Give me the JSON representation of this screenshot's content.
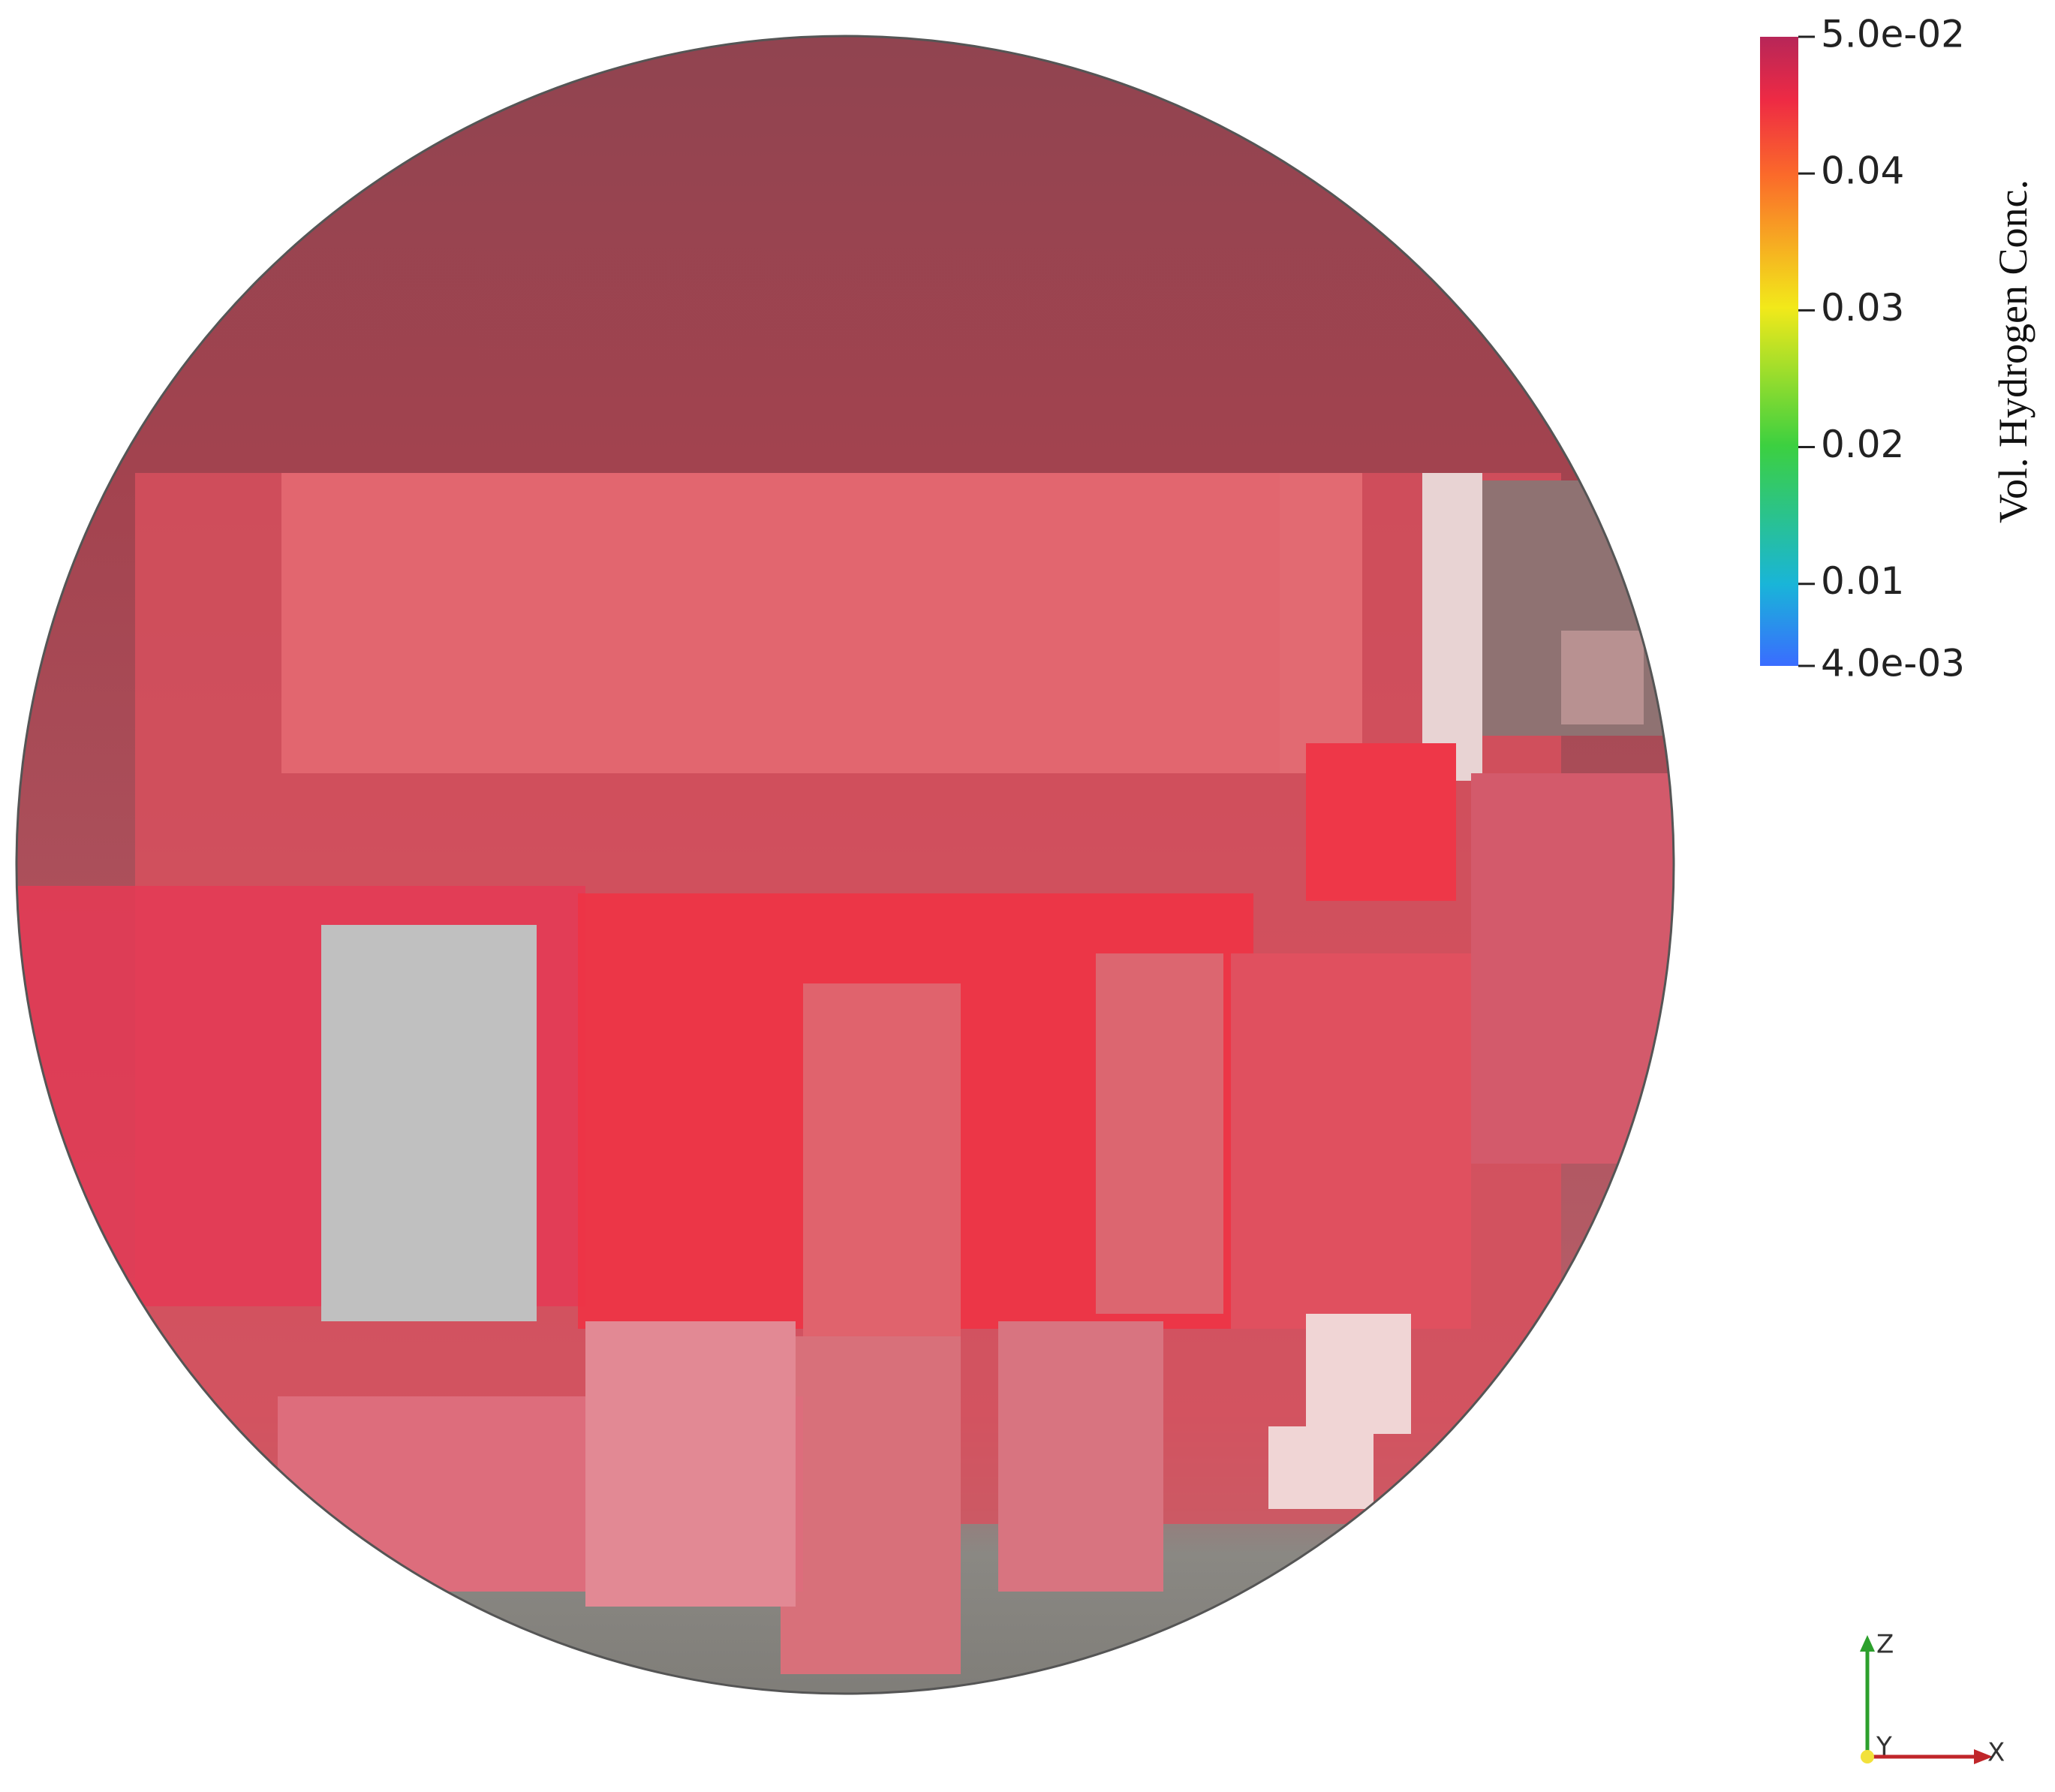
{
  "colorbar": {
    "title": "Vol. Hydrogen Conc.",
    "ticks": [
      {
        "value": 0.05,
        "label": "5.0e-02"
      },
      0.04,
      0.03,
      0.02,
      0.01,
      {
        "value": 0.004,
        "label": "4.0e-03"
      }
    ]
  },
  "orientation_axes": {
    "z": "Z",
    "y": "Y",
    "x": "X"
  }
}
